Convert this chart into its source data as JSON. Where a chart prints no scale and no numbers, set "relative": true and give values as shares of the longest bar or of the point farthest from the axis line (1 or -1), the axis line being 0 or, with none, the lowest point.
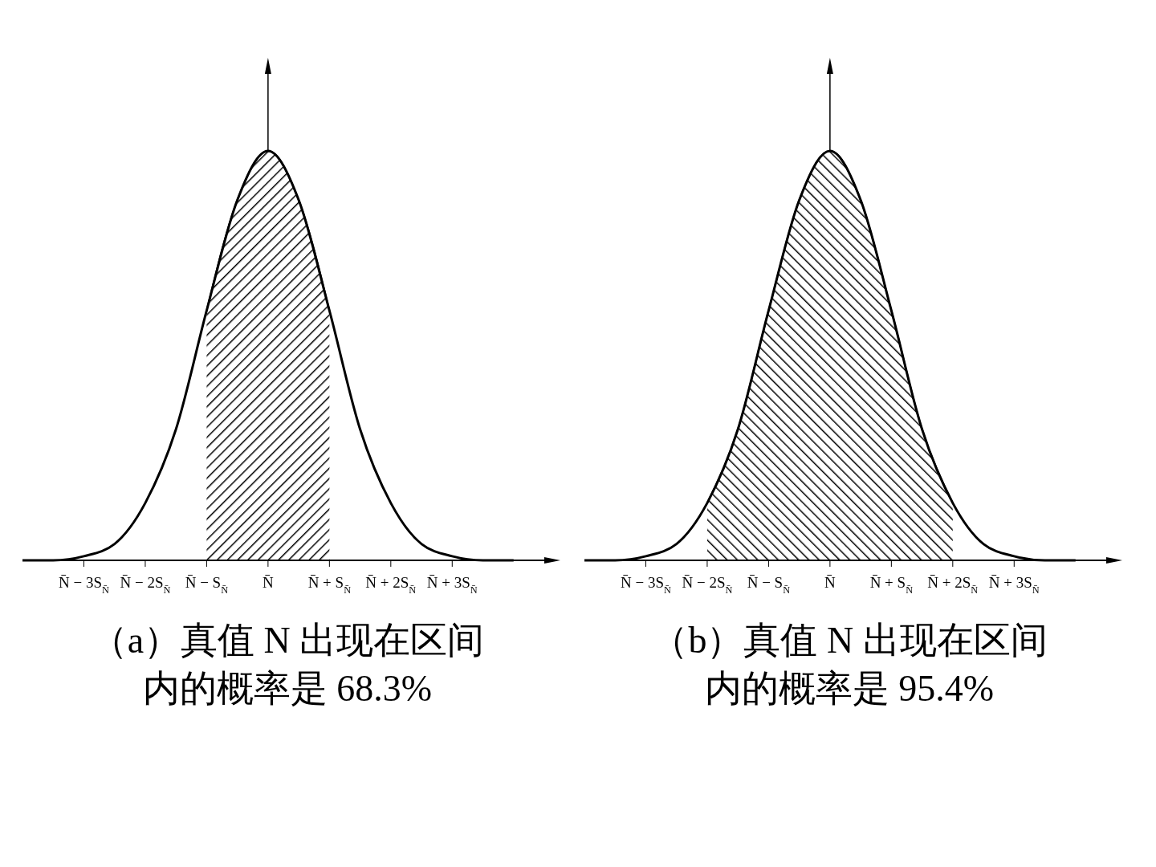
{
  "chart_data": [
    {
      "type": "line",
      "title": "（a）真值 N 出现在区间内的概率是 68.3%",
      "relative": true,
      "x": [
        -4,
        -3.5,
        -3,
        -2.5,
        -2,
        -1.5,
        -1,
        -0.5,
        0,
        0.5,
        1,
        1.5,
        2,
        2.5,
        3,
        3.5,
        4
      ],
      "xlim": [
        -4,
        4.5
      ],
      "xticks": [
        {
          "value": -3,
          "label": "N̄ − 3S$_{N̄}$"
        },
        {
          "value": -2,
          "label": "N̄ − 2S$_{N̄}$"
        },
        {
          "value": -1,
          "label": "N̄ − S$_{N̄}$"
        },
        {
          "value": 0,
          "label": "N̄"
        },
        {
          "value": 1,
          "label": "N̄ + S$_{N̄}$"
        },
        {
          "value": 2,
          "label": "N̄ + 2S$_{N̄}$"
        },
        {
          "value": 3,
          "label": "N̄ + 3S$_{N̄}$"
        }
      ],
      "series": [
        {
          "type": "area",
          "color": "#000000",
          "x": [
            -1,
            -0.5,
            0,
            0.5,
            1
          ],
          "values": [
            0.61,
            0.88,
            1,
            0.88,
            0.61
          ]
        },
        {
          "color": "#000000",
          "values": [
            0,
            0,
            0.01,
            0.04,
            0.14,
            0.32,
            0.61,
            0.88,
            1,
            0.88,
            0.61,
            0.32,
            0.14,
            0.04,
            0.01,
            0,
            0
          ]
        }
      ],
      "grid": false,
      "marker": "none"
    },
    {
      "type": "line",
      "title": "（b）真值 N 出现在区间内的概率是 95.4%",
      "relative": true,
      "x": [
        -4,
        -3.5,
        -3,
        -2.5,
        -2,
        -1.5,
        -1,
        -0.5,
        0,
        0.5,
        1,
        1.5,
        2,
        2.5,
        3,
        3.5,
        4
      ],
      "xlim": [
        -4,
        4.5
      ],
      "xticks": [
        {
          "value": -3,
          "label": "N̄ − 3S$_{N̄}$"
        },
        {
          "value": -2,
          "label": "N̄ − 2S$_{N̄}$"
        },
        {
          "value": -1,
          "label": "N̄ − S$_{N̄}$"
        },
        {
          "value": 0,
          "label": "N̄"
        },
        {
          "value": 1,
          "label": "N̄ + S$_{N̄}$"
        },
        {
          "value": 2,
          "label": "N̄ + 2S$_{N̄}$"
        },
        {
          "value": 3,
          "label": "N̄ + 3S$_{N̄}$"
        }
      ],
      "series": [
        {
          "type": "area",
          "color": "#000000",
          "x": [
            -2,
            -1.5,
            -1,
            -0.5,
            0,
            0.5,
            1,
            1.5,
            2
          ],
          "values": [
            0.14,
            0.32,
            0.61,
            0.88,
            1,
            0.88,
            0.61,
            0.32,
            0.14
          ]
        },
        {
          "color": "#000000",
          "values": [
            0,
            0,
            0.01,
            0.04,
            0.14,
            0.32,
            0.61,
            0.88,
            1,
            0.88,
            0.61,
            0.32,
            0.14,
            0.04,
            0.01,
            0,
            0
          ]
        }
      ],
      "grid": false,
      "marker": "none"
    }
  ]
}
